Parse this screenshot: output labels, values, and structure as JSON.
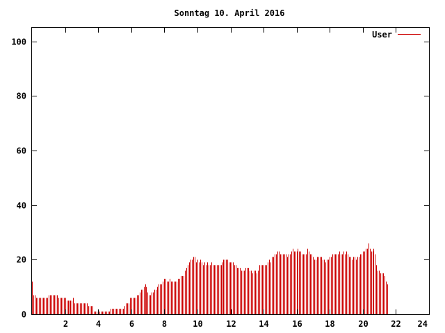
{
  "chart_data": {
    "type": "bar",
    "title": "Sonntag 10. April 2016",
    "xlabel": "",
    "ylabel": "",
    "xlim": [
      0,
      24
    ],
    "ylim": [
      0,
      105
    ],
    "x_ticks": [
      2,
      4,
      6,
      8,
      10,
      12,
      14,
      16,
      18,
      20,
      22,
      24
    ],
    "y_ticks": [
      0,
      20,
      40,
      60,
      80,
      100
    ],
    "grid": false,
    "legend_position": "top-right",
    "series": [
      {
        "name": "User",
        "color": "#cc0000",
        "x_start": 0,
        "x_step": 0.0833,
        "values": [
          12,
          7,
          7,
          6,
          6,
          6,
          6,
          6,
          6,
          6,
          6,
          6,
          7,
          7,
          7,
          7,
          7,
          7,
          7,
          6,
          6,
          6,
          6,
          6,
          6,
          5,
          5,
          5,
          5,
          5,
          6,
          4,
          4,
          4,
          4,
          4,
          4,
          4,
          4,
          4,
          4,
          3,
          3,
          3,
          3,
          1,
          1,
          1,
          1,
          1,
          1,
          1,
          1,
          1,
          1,
          1,
          1,
          2,
          2,
          2,
          2,
          2,
          2,
          2,
          2,
          2,
          2,
          3,
          4,
          4,
          4,
          6,
          6,
          6,
          6,
          6,
          7,
          7,
          8,
          9,
          9,
          10,
          11,
          10,
          8,
          7,
          7,
          8,
          8,
          9,
          9,
          10,
          11,
          11,
          11,
          12,
          13,
          13,
          12,
          12,
          13,
          12,
          12,
          12,
          12,
          12,
          13,
          13,
          14,
          14,
          14,
          16,
          17,
          18,
          19,
          20,
          20,
          21,
          21,
          19,
          20,
          19,
          20,
          19,
          18,
          19,
          18,
          19,
          18,
          18,
          19,
          18,
          18,
          18,
          18,
          18,
          18,
          18,
          19,
          20,
          20,
          20,
          20,
          19,
          19,
          19,
          19,
          18,
          18,
          17,
          17,
          17,
          16,
          16,
          16,
          17,
          17,
          17,
          16,
          16,
          15,
          16,
          16,
          15,
          16,
          18,
          18,
          18,
          18,
          18,
          18,
          19,
          20,
          19,
          21,
          21,
          22,
          22,
          23,
          23,
          22,
          22,
          22,
          22,
          22,
          21,
          22,
          22,
          23,
          24,
          23,
          23,
          23,
          24,
          23,
          23,
          22,
          22,
          22,
          22,
          24,
          23,
          22,
          22,
          21,
          20,
          20,
          21,
          21,
          21,
          21,
          20,
          20,
          19,
          20,
          20,
          21,
          21,
          22,
          22,
          22,
          22,
          22,
          23,
          22,
          22,
          23,
          22,
          23,
          22,
          21,
          21,
          20,
          21,
          21,
          20,
          21,
          21,
          22,
          22,
          23,
          23,
          24,
          24,
          26,
          24,
          23,
          23,
          24,
          22,
          18,
          16,
          16,
          15,
          15,
          15,
          14,
          12,
          11
        ]
      }
    ]
  }
}
